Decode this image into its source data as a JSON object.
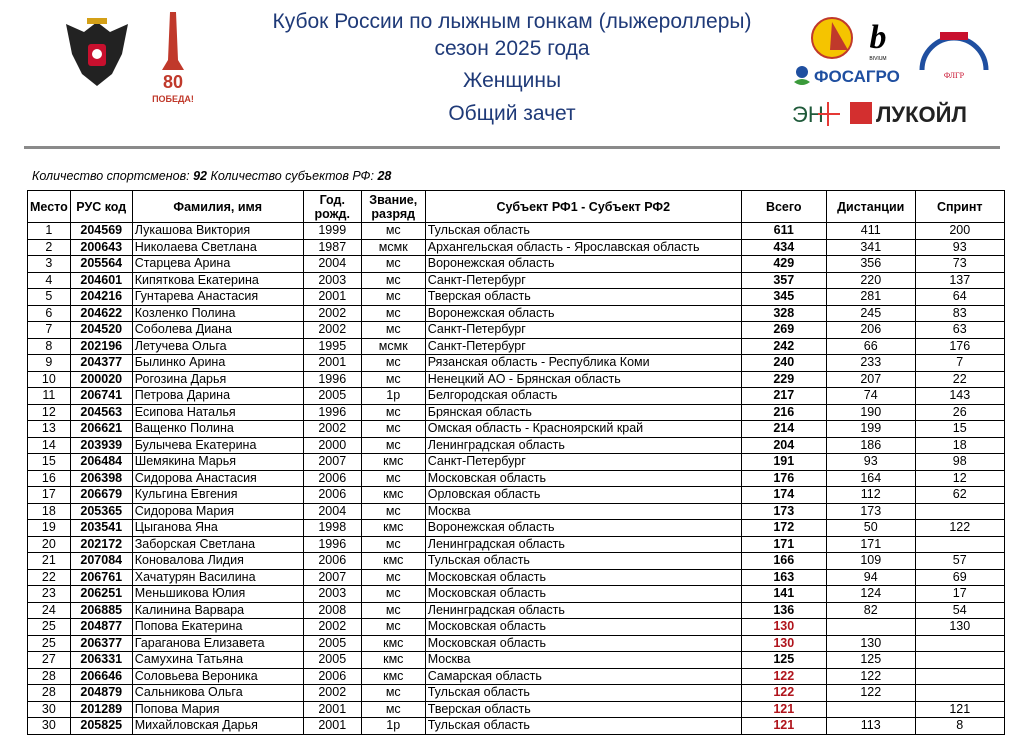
{
  "header": {
    "title_line1": "Кубок России по лыжным гонкам (лыжероллеры)",
    "title_line2": "сезон 2025 года",
    "category": "Женщины",
    "subtitle": "Общий зачет",
    "logos": [
      "coat-of-arms",
      "80-pobeda",
      "federation-emblem",
      "bivium",
      "fosagro",
      "flgr",
      "en-plus",
      "lukoil"
    ],
    "logo_text": {
      "pobeda": "80 ПОБЕДА!",
      "bivium": "BIVIUM",
      "fosagro": "ФОСАГРО",
      "flgr": "ФЛГР",
      "enplus": "ЭН+",
      "lukoil": "ЛУКОЙЛ"
    }
  },
  "summary": {
    "athletes_label": "Количество спортсменов:",
    "athletes": "92",
    "regions_label": "Количество субъектов РФ:",
    "regions": "28"
  },
  "colors": {
    "title": "#1f3a78",
    "highlight_total": "#b0141c"
  },
  "table": {
    "columns": [
      "Место",
      "РУС код",
      "Фамилия, имя",
      "Год. рожд.",
      "Звание, разряд",
      "Субъект РФ1 - Субъект РФ2",
      "Всего",
      "Дистанции",
      "Спринт"
    ],
    "rows": [
      [
        "1",
        "204569",
        "Лукашова Виктория",
        "1999",
        "мс",
        "Тульская область",
        "611",
        "411",
        "200",
        false
      ],
      [
        "2",
        "200643",
        "Николаева Светлана",
        "1987",
        "мсмк",
        "Архангельская область - Ярославская область",
        "434",
        "341",
        "93",
        false
      ],
      [
        "3",
        "205564",
        "Старцева Арина",
        "2004",
        "мс",
        "Воронежская область",
        "429",
        "356",
        "73",
        false
      ],
      [
        "4",
        "204601",
        "Кипяткова Екатерина",
        "2003",
        "мс",
        "Санкт-Петербург",
        "357",
        "220",
        "137",
        false
      ],
      [
        "5",
        "204216",
        "Гунтарева Анастасия",
        "2001",
        "мс",
        "Тверская область",
        "345",
        "281",
        "64",
        false
      ],
      [
        "6",
        "204622",
        "Козленко Полина",
        "2002",
        "мс",
        "Воронежская область",
        "328",
        "245",
        "83",
        false
      ],
      [
        "7",
        "204520",
        "Соболева Диана",
        "2002",
        "мс",
        "Санкт-Петербург",
        "269",
        "206",
        "63",
        false
      ],
      [
        "8",
        "202196",
        "Летучева Ольга",
        "1995",
        "мсмк",
        "Санкт-Петербург",
        "242",
        "66",
        "176",
        false
      ],
      [
        "9",
        "204377",
        "Былинко Арина",
        "2001",
        "мс",
        "Рязанская область - Республика Коми",
        "240",
        "233",
        "7",
        false
      ],
      [
        "10",
        "200020",
        "Рогозина Дарья",
        "1996",
        "мс",
        "Ненецкий АО - Брянская область",
        "229",
        "207",
        "22",
        false
      ],
      [
        "11",
        "206741",
        "Петрова Дарина",
        "2005",
        "1р",
        "Белгородская область",
        "217",
        "74",
        "143",
        false
      ],
      [
        "12",
        "204563",
        "Есипова Наталья",
        "1996",
        "мс",
        "Брянская область",
        "216",
        "190",
        "26",
        false
      ],
      [
        "13",
        "206621",
        "Ващенко Полина",
        "2002",
        "мс",
        "Омская область - Красноярский край",
        "214",
        "199",
        "15",
        false
      ],
      [
        "14",
        "203939",
        "Булычева Екатерина",
        "2000",
        "мс",
        "Ленинградская область",
        "204",
        "186",
        "18",
        false
      ],
      [
        "15",
        "206484",
        "Шемякина Марья",
        "2007",
        "кмс",
        "Санкт-Петербург",
        "191",
        "93",
        "98",
        false
      ],
      [
        "16",
        "206398",
        "Сидорова Анастасия",
        "2006",
        "мс",
        "Московская область",
        "176",
        "164",
        "12",
        false
      ],
      [
        "17",
        "206679",
        "Кульгина Евгения",
        "2006",
        "кмс",
        "Орловская область",
        "174",
        "112",
        "62",
        false
      ],
      [
        "18",
        "205365",
        "Сидорова Мария",
        "2004",
        "мс",
        "Москва",
        "173",
        "173",
        "",
        false
      ],
      [
        "19",
        "203541",
        "Цыганова Яна",
        "1998",
        "кмс",
        "Воронежская область",
        "172",
        "50",
        "122",
        false
      ],
      [
        "20",
        "202172",
        "Заборская Светлана",
        "1996",
        "мс",
        "Ленинградская область",
        "171",
        "171",
        "",
        false
      ],
      [
        "21",
        "207084",
        "Коновалова Лидия",
        "2006",
        "кмс",
        "Тульская область",
        "166",
        "109",
        "57",
        false
      ],
      [
        "22",
        "206761",
        "Хачатурян Василина",
        "2007",
        "мс",
        "Московская область",
        "163",
        "94",
        "69",
        false
      ],
      [
        "23",
        "206251",
        "Меньшикова Юлия",
        "2003",
        "мс",
        "Московская область",
        "141",
        "124",
        "17",
        false
      ],
      [
        "24",
        "206885",
        "Калинина Варвара",
        "2008",
        "мс",
        "Ленинградская область",
        "136",
        "82",
        "54",
        false
      ],
      [
        "25",
        "204877",
        "Попова Екатерина",
        "2002",
        "мс",
        "Московская область",
        "130",
        "",
        "130",
        true
      ],
      [
        "25",
        "206377",
        "Гараганова Елизавета",
        "2005",
        "кмс",
        "Московская область",
        "130",
        "130",
        "",
        true
      ],
      [
        "27",
        "206331",
        "Самухина Татьяна",
        "2005",
        "кмс",
        "Москва",
        "125",
        "125",
        "",
        false
      ],
      [
        "28",
        "206646",
        "Соловьева Вероника",
        "2006",
        "кмс",
        "Самарская область",
        "122",
        "122",
        "",
        true
      ],
      [
        "28",
        "204879",
        "Сальникова Ольга",
        "2002",
        "мс",
        "Тульская область",
        "122",
        "122",
        "",
        true
      ],
      [
        "30",
        "201289",
        "Попова Мария",
        "2001",
        "мс",
        "Тверская область",
        "121",
        "",
        "121",
        true
      ],
      [
        "30",
        "205825",
        "Михайловская Дарья",
        "2001",
        "1р",
        "Тульская область",
        "121",
        "113",
        "8",
        true
      ]
    ]
  }
}
